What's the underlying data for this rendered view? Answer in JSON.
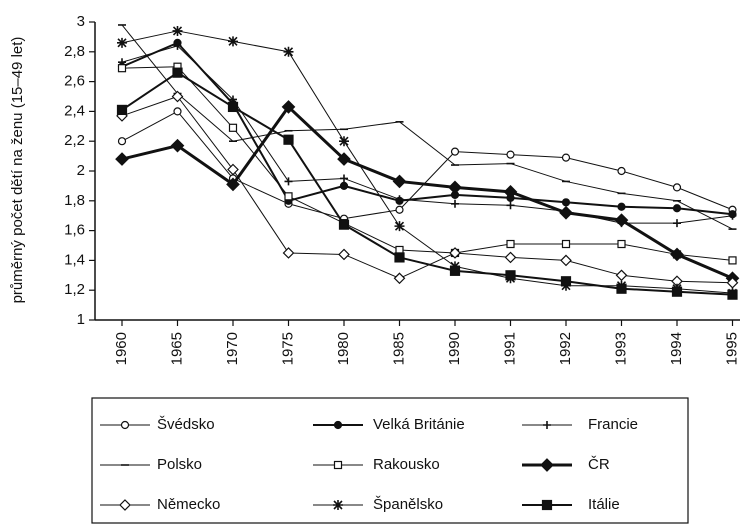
{
  "chart_data": {
    "type": "line",
    "y_label": "průměrný počet dětí na ženu (15–49 let)",
    "categories": [
      "1960",
      "1965",
      "1970",
      "1975",
      "1980",
      "1985",
      "1990",
      "1991",
      "1992",
      "1993",
      "1994",
      "1995"
    ],
    "ylim": [
      1,
      3
    ],
    "yticks": [
      1,
      {
        "value": 1.2,
        "label": "1,2"
      },
      {
        "value": 1.4,
        "label": "1,4"
      },
      {
        "value": 1.6,
        "label": "1,6"
      },
      {
        "value": 1.8,
        "label": "1,8"
      },
      2,
      {
        "value": 2.2,
        "label": "2,2"
      },
      {
        "value": 2.4,
        "label": "2,4"
      },
      {
        "value": 2.6,
        "label": "2,6"
      },
      {
        "value": 2.8,
        "label": "2,8"
      },
      3
    ],
    "series": [
      {
        "name": "Švédsko",
        "color": "#111",
        "width": 1,
        "marker": "circle-open",
        "values": [
          2.2,
          2.4,
          1.95,
          1.78,
          1.68,
          1.74,
          2.13,
          2.11,
          2.09,
          2.0,
          1.89,
          1.74
        ]
      },
      {
        "name": "Velká Británie",
        "color": "#111",
        "width": 2,
        "marker": "circle-filled",
        "values": [
          2.7,
          2.86,
          2.45,
          1.8,
          1.9,
          1.8,
          1.84,
          1.82,
          1.79,
          1.76,
          1.75,
          1.71
        ]
      },
      {
        "name": "Francie",
        "color": "#111",
        "width": 1,
        "marker": "plus",
        "values": [
          2.73,
          2.84,
          2.48,
          1.93,
          1.95,
          1.81,
          1.78,
          1.77,
          1.73,
          1.65,
          1.65,
          1.7
        ]
      },
      {
        "name": "Polsko",
        "color": "#111",
        "width": 1,
        "marker": "dash",
        "values": [
          2.98,
          2.52,
          2.2,
          2.27,
          2.28,
          2.33,
          2.04,
          2.05,
          1.93,
          1.85,
          1.8,
          1.61
        ]
      },
      {
        "name": "Rakousko",
        "color": "#111",
        "width": 1,
        "marker": "square-open",
        "values": [
          2.69,
          2.7,
          2.29,
          1.83,
          1.65,
          1.47,
          1.45,
          1.51,
          1.51,
          1.51,
          1.44,
          1.4
        ]
      },
      {
        "name": "ČR",
        "color": "#111",
        "width": 3,
        "marker": "diamond-filled",
        "values": [
          2.08,
          2.17,
          1.91,
          2.43,
          2.08,
          1.93,
          1.89,
          1.86,
          1.72,
          1.67,
          1.44,
          1.28
        ]
      },
      {
        "name": "Německo",
        "color": "#111",
        "width": 1,
        "marker": "diamond-open",
        "values": [
          2.37,
          2.5,
          2.01,
          1.45,
          1.44,
          1.28,
          1.45,
          1.42,
          1.4,
          1.3,
          1.26,
          1.25
        ]
      },
      {
        "name": "Španělsko",
        "color": "#111",
        "width": 1,
        "marker": "star",
        "values": [
          2.86,
          2.94,
          2.87,
          2.8,
          2.2,
          1.63,
          1.36,
          1.28,
          1.23,
          1.23,
          1.21,
          1.18
        ]
      },
      {
        "name": "Itálie",
        "color": "#111",
        "width": 2,
        "marker": "square-filled",
        "values": [
          2.41,
          2.66,
          2.43,
          2.21,
          1.64,
          1.42,
          1.33,
          1.3,
          1.26,
          1.21,
          1.19,
          1.17
        ]
      }
    ]
  }
}
